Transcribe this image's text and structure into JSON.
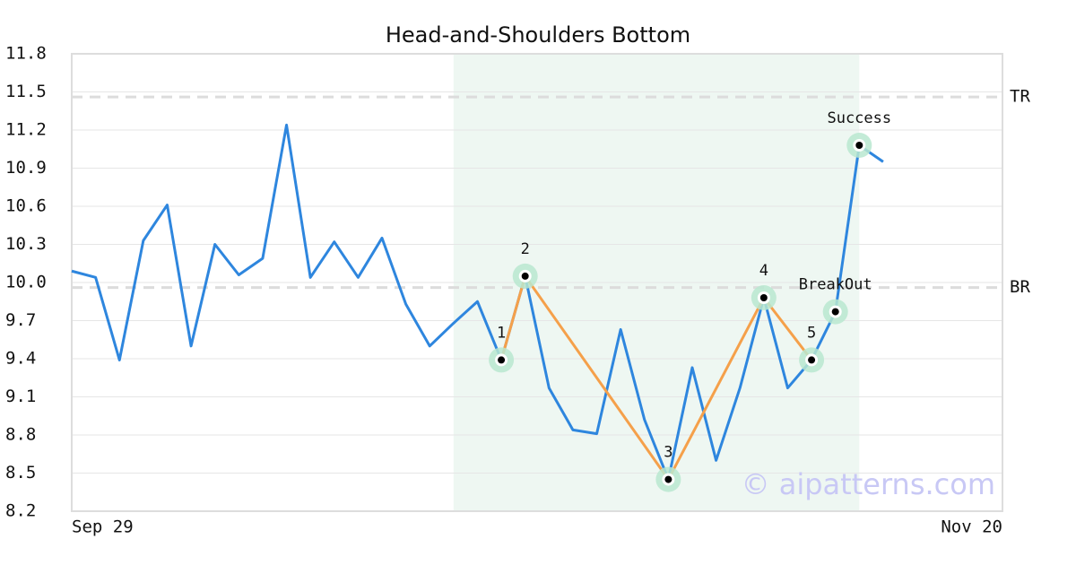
{
  "chart_data": {
    "type": "line",
    "title": "Head-and-Shoulders Bottom",
    "categories": [
      "Sep 29",
      null,
      null,
      null,
      null,
      null,
      null,
      null,
      null,
      null,
      null,
      null,
      null,
      null,
      null,
      null,
      null,
      null,
      null,
      null,
      null,
      null,
      null,
      null,
      null,
      null,
      null,
      null,
      null,
      null,
      null,
      null,
      null,
      null,
      null,
      null,
      null,
      null,
      null,
      "Nov 20"
    ],
    "series": [
      {
        "color": "#2e86de",
        "values": [
          10.09,
          10.04,
          9.39,
          10.33,
          10.61,
          9.5,
          10.3,
          10.06,
          10.19,
          11.24,
          10.04,
          10.32,
          10.04,
          10.35,
          9.83,
          9.5,
          9.68,
          9.85,
          9.39,
          10.05,
          9.17,
          8.84,
          8.81,
          9.63,
          8.92,
          8.45,
          9.33,
          8.6,
          9.17,
          9.88,
          9.17,
          9.39,
          9.77,
          11.08,
          10.95,
          null,
          null,
          null,
          null,
          null
        ]
      }
    ],
    "ylim": [
      8.2,
      11.8
    ],
    "yticks": [
      8.2,
      8.5,
      8.8,
      9.1,
      9.4,
      9.7,
      {
        "value": 10.0,
        "label": "10.0"
      },
      10.3,
      10.6,
      10.9,
      11.2,
      11.5,
      11.8
    ],
    "grid": true,
    "highlight": {
      "from": 16,
      "to": 33,
      "color": "#eef7f2"
    },
    "levels": [
      {
        "label": "TR",
        "value": 11.46
      },
      {
        "label": "BR",
        "value": 9.96
      }
    ],
    "pattern": {
      "color": "#f5a04a",
      "points": [
        {
          "text": "1",
          "index": 18
        },
        {
          "text": "2",
          "index": 19
        },
        {
          "text": "3",
          "index": 25
        },
        {
          "text": "4",
          "index": 29
        },
        {
          "text": "5",
          "index": 31
        }
      ]
    },
    "annotations": [
      {
        "text": "BreakOut",
        "index": 32
      },
      {
        "text": "Success",
        "index": 33
      }
    ],
    "watermark": "© aipatterns.com"
  }
}
